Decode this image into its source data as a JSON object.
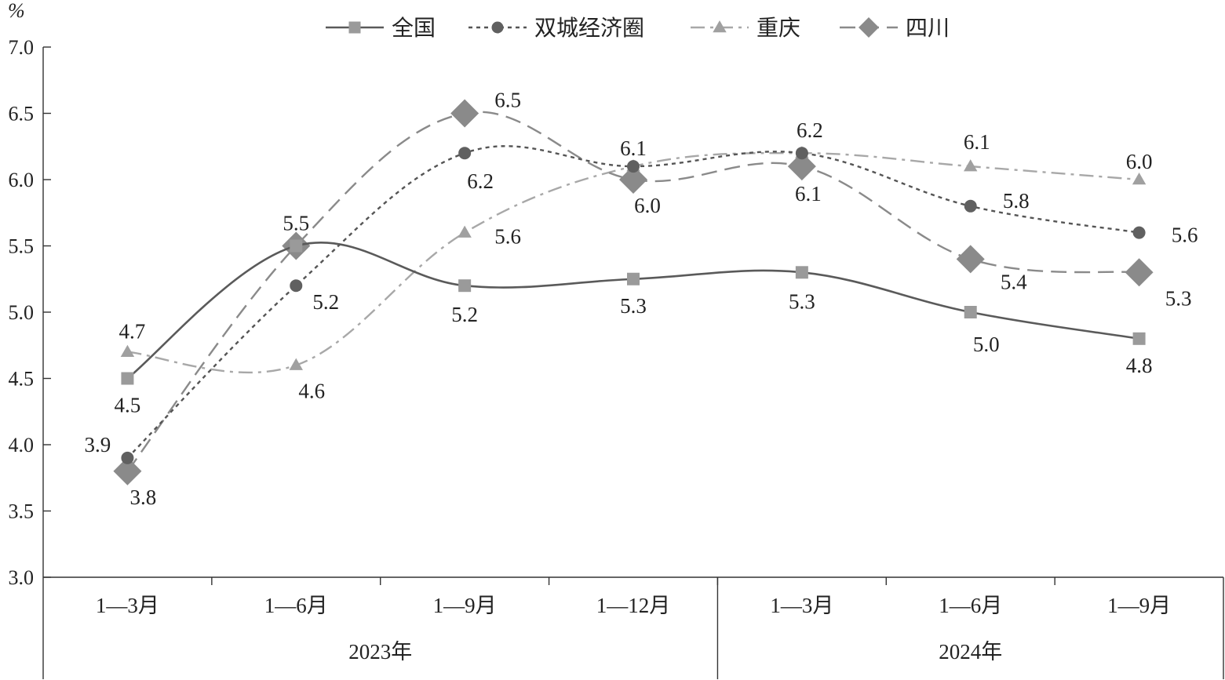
{
  "chart_data": {
    "type": "line",
    "y_unit": "%",
    "ylim": [
      3.0,
      7.0
    ],
    "y_ticks": [
      "3.0",
      "3.5",
      "4.0",
      "4.5",
      "5.0",
      "5.5",
      "6.0",
      "6.5",
      "7.0"
    ],
    "categories": [
      "1—3月",
      "1—6月",
      "1—9月",
      "1—12月",
      "1—3月",
      "1—6月",
      "1—9月"
    ],
    "groups": [
      {
        "label": "2023年",
        "count": 4
      },
      {
        "label": "2024年",
        "count": 3
      }
    ],
    "legend_position": "top",
    "grid": false,
    "series": [
      {
        "name": "全国",
        "values": [
          4.5,
          5.5,
          5.2,
          5.25,
          5.3,
          5.0,
          4.8
        ],
        "labels": [
          "4.5",
          "5.5",
          "5.2",
          "5.3",
          "5.3",
          "5.0",
          "4.8"
        ],
        "color": "#5a5a5a",
        "marker_color": "#9a9a9a",
        "marker": "square",
        "dash": "solid"
      },
      {
        "name": "双城经济圈",
        "values": [
          3.9,
          5.2,
          6.2,
          6.1,
          6.2,
          5.8,
          5.6
        ],
        "labels": [
          "3.9",
          "5.2",
          "6.2",
          "6.1",
          "6.2",
          "5.8",
          "5.6"
        ],
        "color": "#555555",
        "marker_color": "#606060",
        "marker": "circle",
        "dash": "short"
      },
      {
        "name": "重庆",
        "values": [
          4.7,
          4.6,
          5.6,
          6.1,
          6.2,
          6.1,
          6.0
        ],
        "labels": [
          "4.7",
          "4.6",
          "5.6",
          "",
          "",
          "6.1",
          "6.0"
        ],
        "color": "#a8a8a8",
        "marker_color": "#a0a0a0",
        "marker": "triangle",
        "dash": "dashdot"
      },
      {
        "name": "四川",
        "values": [
          3.8,
          5.5,
          6.5,
          6.0,
          6.1,
          5.4,
          5.3
        ],
        "labels": [
          "3.8",
          "",
          "6.5",
          "6.0",
          "6.1",
          "5.4",
          "5.3"
        ],
        "color": "#8a8a8a",
        "marker_color": "#8a8a8a",
        "marker": "diamond",
        "dash": "long"
      }
    ]
  }
}
